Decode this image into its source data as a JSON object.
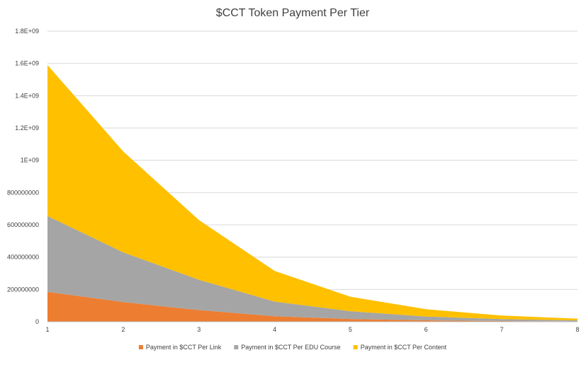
{
  "chart_data": {
    "type": "area",
    "stacked": true,
    "title": "$CCT Token Payment Per Tier",
    "xlabel": "",
    "ylabel": "",
    "x": [
      1,
      2,
      3,
      4,
      5,
      6,
      7,
      8
    ],
    "x_tick_labels": [
      "1",
      "2",
      "3",
      "4",
      "5",
      "6",
      "7",
      "8"
    ],
    "ylim": [
      0,
      1800000000
    ],
    "y_tick_values": [
      0,
      200000000,
      400000000,
      600000000,
      800000000,
      1000000000,
      1200000000,
      1400000000,
      1600000000,
      1800000000
    ],
    "y_tick_labels": [
      "0",
      "200000000",
      "400000000",
      "600000000",
      "800000000",
      "1E+09",
      "1.2E+09",
      "1.4E+09",
      "1.6E+09",
      "1.8E+09"
    ],
    "grid": true,
    "legend_position": "bottom",
    "series": [
      {
        "name": "Payment in $CCT Per Link",
        "color": "#ed7d31",
        "values": [
          185000000,
          122000000,
          72000000,
          34000000,
          17000000,
          8500000,
          4200000,
          2100000
        ]
      },
      {
        "name": "Payment in $CCT Per EDU Course",
        "color": "#a5a5a5",
        "values": [
          470000000,
          308000000,
          188000000,
          91000000,
          48000000,
          24000000,
          12000000,
          6000000
        ]
      },
      {
        "name": "Payment in $CCT Per Content",
        "color": "#ffc000",
        "values": [
          935000000,
          625000000,
          370000000,
          190000000,
          90000000,
          45000000,
          22000000,
          11000000
        ]
      }
    ]
  }
}
